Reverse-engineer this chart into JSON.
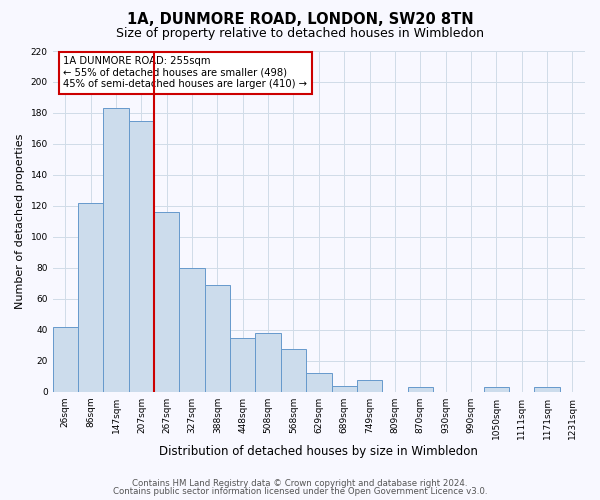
{
  "title": "1A, DUNMORE ROAD, LONDON, SW20 8TN",
  "subtitle": "Size of property relative to detached houses in Wimbledon",
  "xlabel": "Distribution of detached houses by size in Wimbledon",
  "ylabel": "Number of detached properties",
  "categories": [
    "26sqm",
    "86sqm",
    "147sqm",
    "207sqm",
    "267sqm",
    "327sqm",
    "388sqm",
    "448sqm",
    "508sqm",
    "568sqm",
    "629sqm",
    "689sqm",
    "749sqm",
    "809sqm",
    "870sqm",
    "930sqm",
    "990sqm",
    "1050sqm",
    "1111sqm",
    "1171sqm",
    "1231sqm"
  ],
  "values": [
    42,
    122,
    183,
    175,
    116,
    80,
    69,
    35,
    38,
    28,
    12,
    4,
    8,
    0,
    3,
    0,
    0,
    3,
    0,
    3,
    0
  ],
  "bar_color": "#ccdcec",
  "bar_edge_color": "#6699cc",
  "vline_color": "#cc0000",
  "vline_x_idx": 3,
  "annotation_title": "1A DUNMORE ROAD: 255sqm",
  "annotation_line1": "← 55% of detached houses are smaller (498)",
  "annotation_line2": "45% of semi-detached houses are larger (410) →",
  "annotation_box_color": "white",
  "annotation_box_edge": "#cc0000",
  "ylim": [
    0,
    220
  ],
  "yticks": [
    0,
    20,
    40,
    60,
    80,
    100,
    120,
    140,
    160,
    180,
    200,
    220
  ],
  "footer1": "Contains HM Land Registry data © Crown copyright and database right 2024.",
  "footer2": "Contains public sector information licensed under the Open Government Licence v3.0.",
  "bg_color": "#f8f8ff",
  "grid_color": "#d0dce8",
  "title_fontsize": 10.5,
  "subtitle_fontsize": 9,
  "tick_fontsize": 6.5,
  "ylabel_fontsize": 8,
  "xlabel_fontsize": 8.5,
  "footer_fontsize": 6.2
}
